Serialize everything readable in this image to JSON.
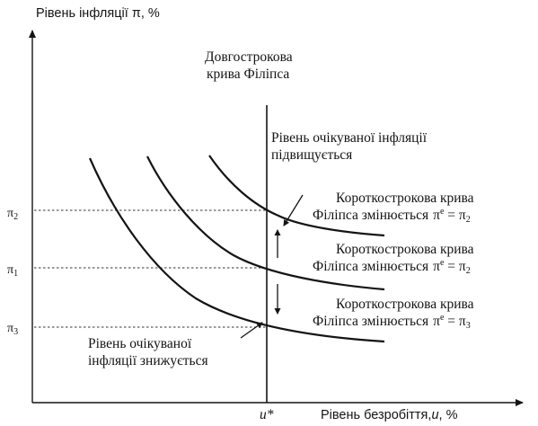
{
  "title": "",
  "y_axis_label": "Рівень інфляції π, %",
  "x_axis_label_prefix": "Рівень безробіття,",
  "x_axis_label_var": "u",
  "x_axis_label_suffix": ", %",
  "natural_rate_label": "u*",
  "y_ticks": [
    {
      "base": "π",
      "sub": "2",
      "level": "pi2"
    },
    {
      "base": "π",
      "sub": "1",
      "level": "pi1"
    },
    {
      "base": "π",
      "sub": "3",
      "level": "pi3"
    }
  ],
  "long_run_curve": {
    "line1": "Довгострокова",
    "line2": "крива Філіпса"
  },
  "expected_up_note": {
    "line1": "Рівень очікуваної інфляції",
    "line2": "підвищується"
  },
  "expected_down_note": {
    "line1": "Рівень очікуваної",
    "line2": "інфляції знижується"
  },
  "short_run_curves": [
    {
      "line1": "Короткострокова крива",
      "line2": "Філіпса змінюється",
      "expectation": "π",
      "exp_sup": "e",
      "equals": " = ",
      "target": "π",
      "target_sub": "2",
      "level": "pi2"
    },
    {
      "line1": "Короткострокова крива",
      "line2": "Філіпса змінюється",
      "expectation": "π",
      "exp_sup": "e",
      "equals": " = ",
      "target": "π",
      "target_sub": "2",
      "level": "pi1"
    },
    {
      "line1": "Короткострокова крива",
      "line2": "Філіпса змінюється",
      "expectation": "π",
      "exp_sup": "e",
      "equals": " = ",
      "target": "π",
      "target_sub": "3",
      "level": "pi3"
    }
  ]
}
